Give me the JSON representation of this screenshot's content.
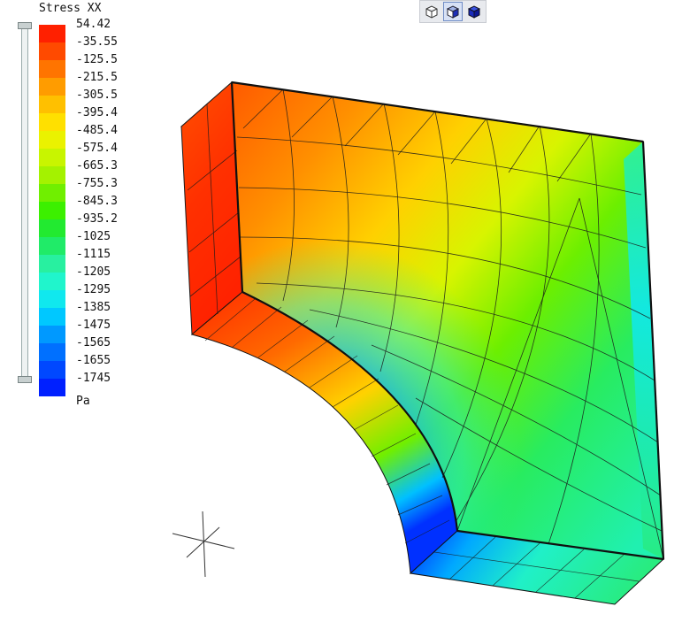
{
  "legend": {
    "title": "Stress XX",
    "unit": "Pa",
    "labels": [
      "54.42",
      "-35.55",
      "-125.5",
      "-215.5",
      "-305.5",
      "-395.4",
      "-485.4",
      "-575.4",
      "-665.3",
      "-755.3",
      "-845.3",
      "-935.2",
      "-1025",
      "-1115",
      "-1205",
      "-1295",
      "-1385",
      "-1475",
      "-1565",
      "-1655",
      "-1745"
    ],
    "colors": [
      "#ff2000",
      "#ff4a00",
      "#ff7400",
      "#ff9c00",
      "#ffc000",
      "#ffe000",
      "#eaf200",
      "#c8f500",
      "#a4f200",
      "#70ef00",
      "#3cf000",
      "#22ea30",
      "#20eb68",
      "#28f0a0",
      "#20f5cc",
      "#10e8ee",
      "#00c8ff",
      "#0099ff",
      "#0070ff",
      "#0048ff",
      "#0020ff"
    ]
  },
  "toolbar": {
    "buttons": [
      {
        "name": "wireframe-view",
        "icon": "cube-outline-icon"
      },
      {
        "name": "shaded-view",
        "icon": "cube-shaded-icon",
        "active": true
      },
      {
        "name": "solid-view",
        "icon": "cube-solid-icon"
      }
    ]
  }
}
